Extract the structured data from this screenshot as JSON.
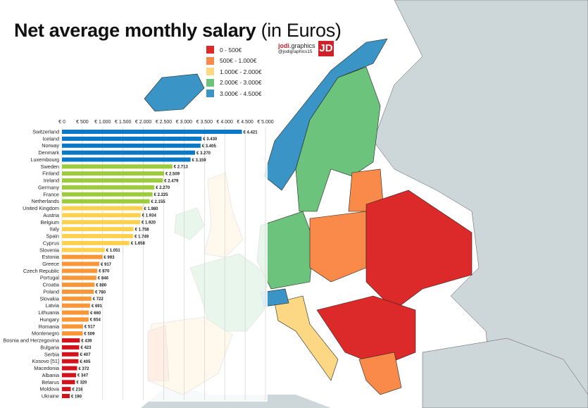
{
  "title": {
    "main": "Net average monthly salary",
    "sub": "(in Euros)"
  },
  "brand": {
    "name_bold": "jodi",
    "name_rest": ".graphics",
    "handle": "@jodigraphics15",
    "logo_letters": "JD"
  },
  "legend": [
    {
      "label": "0 - 500€",
      "color": "#dc2a2a"
    },
    {
      "label": "500€ - 1.000€",
      "color": "#f98a4a"
    },
    {
      "label": "1.000€ - 2.000€",
      "color": "#fdd884"
    },
    {
      "label": "2.000€ - 3.000€",
      "color": "#6cc47c"
    },
    {
      "label": "3.000€ - 4.500€",
      "color": "#3b94c6"
    }
  ],
  "chart_data": {
    "type": "bar",
    "orientation": "horizontal",
    "title": "Net average monthly salary (in Euros)",
    "xlim": [
      0,
      5000
    ],
    "xticks": [
      "€ 0",
      "€ 500",
      "€ 1.000",
      "€ 1.500",
      "€ 2.000",
      "€ 2.500",
      "€ 3.000",
      "€ 3.500",
      "€ 4.000",
      "€ 4.500",
      "€ 5.000"
    ],
    "grid": true,
    "bar_colors": {
      "3000": "#0a78c4",
      "2000": "#9ccc3a",
      "1000": "#fdd04e",
      "500": "#fb9636",
      "0": "#d2121d"
    },
    "categories": [
      "Switzerland",
      "Iceland",
      "Norway",
      "Denmark",
      "Luxembourg",
      "Sweden",
      "Finland",
      "Ireland",
      "Germany",
      "France",
      "Netherlands",
      "United Kingdom",
      "Austria",
      "Belgium",
      "Italy",
      "Spain",
      "Cyprus",
      "Slovenia",
      "Estonia",
      "Greece",
      "Czech Republic",
      "Portugal",
      "Croatia",
      "Poland",
      "Slovakia",
      "Latvia",
      "Lithuania",
      "Hungary",
      "Romania",
      "Montenegro",
      "Bosnia and Herzegovina",
      "Bulgaria",
      "Serbia",
      "Kosovo [51]",
      "Macedonia",
      "Albania",
      "Belarus",
      "Moldova",
      "Ukraine"
    ],
    "values": [
      4421,
      3430,
      3405,
      3270,
      3159,
      2713,
      2509,
      2479,
      2270,
      2225,
      2155,
      1980,
      1934,
      1920,
      1758,
      1749,
      1658,
      1051,
      993,
      917,
      870,
      846,
      800,
      780,
      722,
      691,
      660,
      654,
      517,
      509,
      439,
      423,
      407,
      405,
      372,
      347,
      320,
      216,
      190
    ],
    "labels": [
      "€ 4.421",
      "€ 3.430",
      "€ 3.405",
      "€ 3.270",
      "€ 3.159",
      "€ 2.713",
      "€ 2.509",
      "€ 2.479",
      "€ 2.270",
      "€ 2.225",
      "€ 2.155",
      "€ 1.980",
      "€ 1.934",
      "€ 1.920",
      "€ 1.758",
      "€ 1.749",
      "€ 1.658",
      "€ 1.051",
      "€ 993",
      "€ 917",
      "€ 870",
      "€ 846",
      "€ 800",
      "€ 780",
      "€ 722",
      "€ 691",
      "€ 660",
      "€ 654",
      "€ 517",
      "€ 509",
      "€ 439",
      "€ 423",
      "€ 407",
      "€ 405",
      "€ 372",
      "€ 347",
      "€ 320",
      "€ 216",
      "€ 190"
    ]
  }
}
